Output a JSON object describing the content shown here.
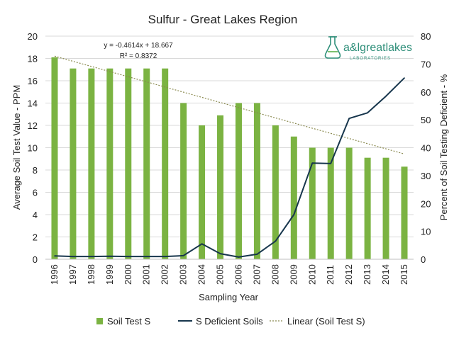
{
  "chart_data": {
    "type": "bar",
    "title": "Sulfur - Great Lakes Region",
    "xlabel": "Sampling Year",
    "ylabel": "Average Soil Test Value - PPM",
    "y2label": "Percent of Soil Testing Deficient - %",
    "ylim": [
      0,
      20
    ],
    "y2lim": [
      0,
      80
    ],
    "yticks": [
      "0",
      "2",
      "4",
      "6",
      "8",
      "10",
      "12",
      "14",
      "16",
      "18",
      "20"
    ],
    "y2ticks": [
      "0",
      "10",
      "20",
      "30",
      "40",
      "50",
      "60",
      "70",
      "80"
    ],
    "categories": [
      "1996",
      "1997",
      "1998",
      "1999",
      "2000",
      "2001",
      "2002",
      "2003",
      "2004",
      "2005",
      "2006",
      "2007",
      "2008",
      "2009",
      "2010",
      "2011",
      "2012",
      "2013",
      "2014",
      "2015"
    ],
    "series": [
      {
        "name": "Soil Test S",
        "type": "bar",
        "axis": "left",
        "color": "#7bb342",
        "values": [
          18.1,
          17.1,
          17.1,
          17.1,
          17.1,
          17.1,
          17.1,
          14.0,
          12.0,
          12.9,
          14.0,
          14.0,
          12.0,
          11.0,
          10.0,
          10.0,
          10.0,
          9.1,
          9.1,
          8.3
        ]
      },
      {
        "name": "S Deficient Soils",
        "type": "line",
        "axis": "right",
        "color": "#17364d",
        "values": [
          1.2,
          1.0,
          1.0,
          1.1,
          1.0,
          1.0,
          1.0,
          1.3,
          5.5,
          2.0,
          0.8,
          1.8,
          6.5,
          16.0,
          34.5,
          34.3,
          50.5,
          52.5,
          58.5,
          65.0
        ]
      },
      {
        "name": "Linear (Soil Test S)",
        "type": "trendline",
        "axis": "left",
        "color": "#8a8a50",
        "slope": -0.4614,
        "intercept": 18.667
      }
    ],
    "annotations": [
      "y = -0.4614x + 18.667",
      "R² = 0.8372"
    ],
    "legend_position": "bottom"
  },
  "logo": {
    "text": "a&lgreatlakes",
    "subtext": "LABORATORIES",
    "color": "#2f8f7a"
  }
}
